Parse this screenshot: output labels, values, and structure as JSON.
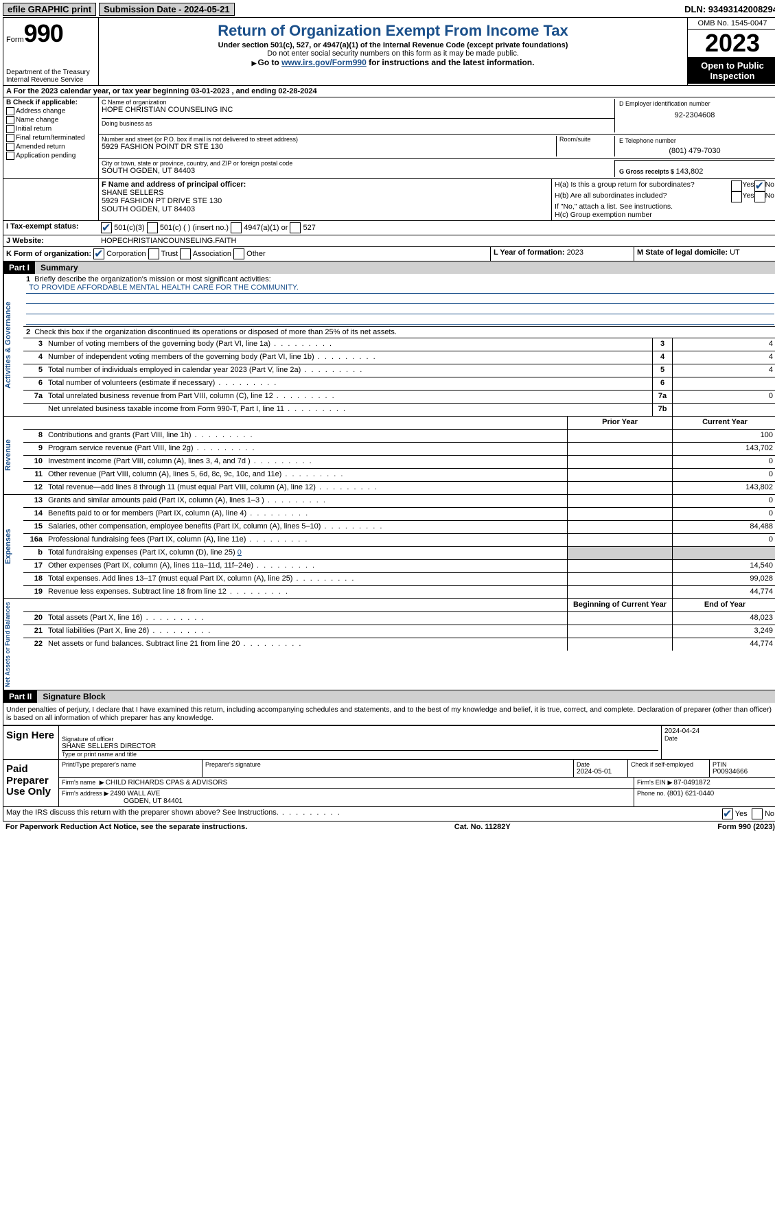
{
  "topbar": {
    "efile": "efile GRAPHIC print",
    "submission_label": "Submission Date - 2024-05-21",
    "dln_label": "DLN: 93493142008294"
  },
  "header": {
    "form_word": "Form",
    "form_number": "990",
    "dept": "Department of the Treasury\nInternal Revenue Service",
    "title": "Return of Organization Exempt From Income Tax",
    "sub1": "Under section 501(c), 527, or 4947(a)(1) of the Internal Revenue Code (except private foundations)",
    "sub2": "Do not enter social security numbers on this form as it may be made public.",
    "goto_pre": "Go to ",
    "goto_link": "www.irs.gov/Form990",
    "goto_post": " for instructions and the latest information.",
    "omb": "OMB No. 1545-0047",
    "year": "2023",
    "open": "Open to Public Inspection"
  },
  "row_a": "A For the 2023 calendar year, or tax year beginning 03-01-2023   , and ending 02-28-2024",
  "box_b": {
    "title": "B Check if applicable:",
    "opts": [
      "Address change",
      "Name change",
      "Initial return",
      "Final return/terminated",
      "Amended return",
      "Application pending"
    ]
  },
  "box_c": {
    "name_lbl": "C Name of organization",
    "name": "HOPE CHRISTIAN COUNSELING INC",
    "dba_lbl": "Doing business as",
    "addr_lbl": "Number and street (or P.O. box if mail is not delivered to street address)",
    "addr": "5929 FASHION POINT DR STE 130",
    "room_lbl": "Room/suite",
    "city_lbl": "City or town, state or province, country, and ZIP or foreign postal code",
    "city": "SOUTH OGDEN, UT  84403"
  },
  "box_d": {
    "lbl": "D Employer identification number",
    "val": "92-2304608"
  },
  "box_e": {
    "lbl": "E Telephone number",
    "val": "(801) 479-7030"
  },
  "box_g": {
    "lbl": "G Gross receipts $ ",
    "val": "143,802"
  },
  "box_f": {
    "lbl": "F  Name and address of principal officer:",
    "name": "SHANE SELLERS",
    "addr1": "5929 FASHION PT DRIVE STE 130",
    "addr2": "SOUTH OGDEN, UT  84403"
  },
  "box_h": {
    "a": "H(a)  Is this a group return for subordinates?",
    "b": "H(b)  Are all subordinates included?",
    "b_note": "If \"No,\" attach a list. See instructions.",
    "c": "H(c)  Group exemption number",
    "yes": "Yes",
    "no": "No"
  },
  "row_i": {
    "lbl": "I   Tax-exempt status:",
    "o1": "501(c)(3)",
    "o2": "501(c) (  ) (insert no.)",
    "o3": "4947(a)(1) or",
    "o4": "527"
  },
  "row_j": {
    "lbl": "J   Website:",
    "val": "HOPECHRISTIANCOUNSELING.FAITH"
  },
  "row_k": {
    "lbl": "K Form of organization:",
    "o1": "Corporation",
    "o2": "Trust",
    "o3": "Association",
    "o4": "Other"
  },
  "row_l": {
    "lbl": "L Year of formation: ",
    "val": "2023"
  },
  "row_m": {
    "lbl": "M State of legal domicile: ",
    "val": "UT"
  },
  "part1": {
    "num": "Part I",
    "title": "Summary"
  },
  "part2": {
    "num": "Part II",
    "title": "Signature Block"
  },
  "summary": {
    "tabs": [
      "Activities & Governance",
      "Revenue",
      "Expenses",
      "Net Assets or Fund Balances"
    ],
    "line1_lbl": "Briefly describe the organization's mission or most significant activities:",
    "mission": "TO PROVIDE AFFORDABLE MENTAL HEALTH CARE FOR THE COMMUNITY.",
    "line2": "Check this box          if the organization discontinued its operations or disposed of more than 25% of its net assets.",
    "prior_hdr": "Prior Year",
    "curr_hdr": "Current Year",
    "boy_hdr": "Beginning of Current Year",
    "eoy_hdr": "End of Year",
    "lines_gov": [
      {
        "n": "3",
        "d": "Number of voting members of the governing body (Part VI, line 1a)",
        "box": "3",
        "v": "4"
      },
      {
        "n": "4",
        "d": "Number of independent voting members of the governing body (Part VI, line 1b)",
        "box": "4",
        "v": "4"
      },
      {
        "n": "5",
        "d": "Total number of individuals employed in calendar year 2023 (Part V, line 2a)",
        "box": "5",
        "v": "4"
      },
      {
        "n": "6",
        "d": "Total number of volunteers (estimate if necessary)",
        "box": "6",
        "v": ""
      },
      {
        "n": "7a",
        "d": "Total unrelated business revenue from Part VIII, column (C), line 12",
        "box": "7a",
        "v": "0"
      },
      {
        "n": "",
        "d": "Net unrelated business taxable income from Form 990-T, Part I, line 11",
        "box": "7b",
        "v": ""
      }
    ],
    "lines_rev": [
      {
        "n": "8",
        "d": "Contributions and grants (Part VIII, line 1h)",
        "c": "100"
      },
      {
        "n": "9",
        "d": "Program service revenue (Part VIII, line 2g)",
        "c": "143,702"
      },
      {
        "n": "10",
        "d": "Investment income (Part VIII, column (A), lines 3, 4, and 7d )",
        "c": "0"
      },
      {
        "n": "11",
        "d": "Other revenue (Part VIII, column (A), lines 5, 6d, 8c, 9c, 10c, and 11e)",
        "c": "0"
      },
      {
        "n": "12",
        "d": "Total revenue—add lines 8 through 11 (must equal Part VIII, column (A), line 12)",
        "c": "143,802"
      }
    ],
    "lines_exp": [
      {
        "n": "13",
        "d": "Grants and similar amounts paid (Part IX, column (A), lines 1–3 )",
        "c": "0"
      },
      {
        "n": "14",
        "d": "Benefits paid to or for members (Part IX, column (A), line 4)",
        "c": "0"
      },
      {
        "n": "15",
        "d": "Salaries, other compensation, employee benefits (Part IX, column (A), lines 5–10)",
        "c": "84,488"
      },
      {
        "n": "16a",
        "d": "Professional fundraising fees (Part IX, column (A), line 11e)",
        "c": "0"
      },
      {
        "n": "b",
        "d": "Total fundraising expenses (Part IX, column (D), line 25) ",
        "link": "0",
        "shade": true
      },
      {
        "n": "17",
        "d": "Other expenses (Part IX, column (A), lines 11a–11d, 11f–24e)",
        "c": "14,540"
      },
      {
        "n": "18",
        "d": "Total expenses. Add lines 13–17 (must equal Part IX, column (A), line 25)",
        "c": "99,028"
      },
      {
        "n": "19",
        "d": "Revenue less expenses. Subtract line 18 from line 12",
        "c": "44,774"
      }
    ],
    "lines_net": [
      {
        "n": "20",
        "d": "Total assets (Part X, line 16)",
        "c": "48,023"
      },
      {
        "n": "21",
        "d": "Total liabilities (Part X, line 26)",
        "c": "3,249"
      },
      {
        "n": "22",
        "d": "Net assets or fund balances. Subtract line 21 from line 20",
        "c": "44,774"
      }
    ]
  },
  "sig": {
    "penalties": "Under penalties of perjury, I declare that I have examined this return, including accompanying schedules and statements, and to the best of my knowledge and belief, it is true, correct, and complete. Declaration of preparer (other than officer) is based on all information of which preparer has any knowledge.",
    "sign_here": "Sign Here",
    "sig_officer_lbl": "Signature of officer",
    "sig_officer": "SHANE SELLERS DIRECTOR",
    "sig_type_lbl": "Type or print name and title",
    "date_lbl": "Date",
    "date1": "2024-04-24",
    "paid": "Paid Preparer Use Only",
    "prep_name_lbl": "Print/Type preparer's name",
    "prep_sig_lbl": "Preparer's signature",
    "date2": "2024-05-01",
    "check_se": "Check          if self-employed",
    "ptin_lbl": "PTIN",
    "ptin": "P00934666",
    "firm_name_lbl": "Firm's name",
    "firm_name": "CHILD RICHARDS CPAS & ADVISORS",
    "firm_ein_lbl": "Firm's EIN",
    "firm_ein": "87-0491872",
    "firm_addr_lbl": "Firm's address",
    "firm_addr1": "2490 WALL AVE",
    "firm_addr2": "OGDEN, UT  84401",
    "phone_lbl": "Phone no.",
    "phone": "(801) 621-0440",
    "discuss": "May the IRS discuss this return with the preparer shown above? See Instructions.",
    "yes": "Yes",
    "no": "No"
  },
  "footer": {
    "pra": "For Paperwork Reduction Act Notice, see the separate instructions.",
    "cat": "Cat. No. 11282Y",
    "form": "Form 990 (2023)"
  }
}
